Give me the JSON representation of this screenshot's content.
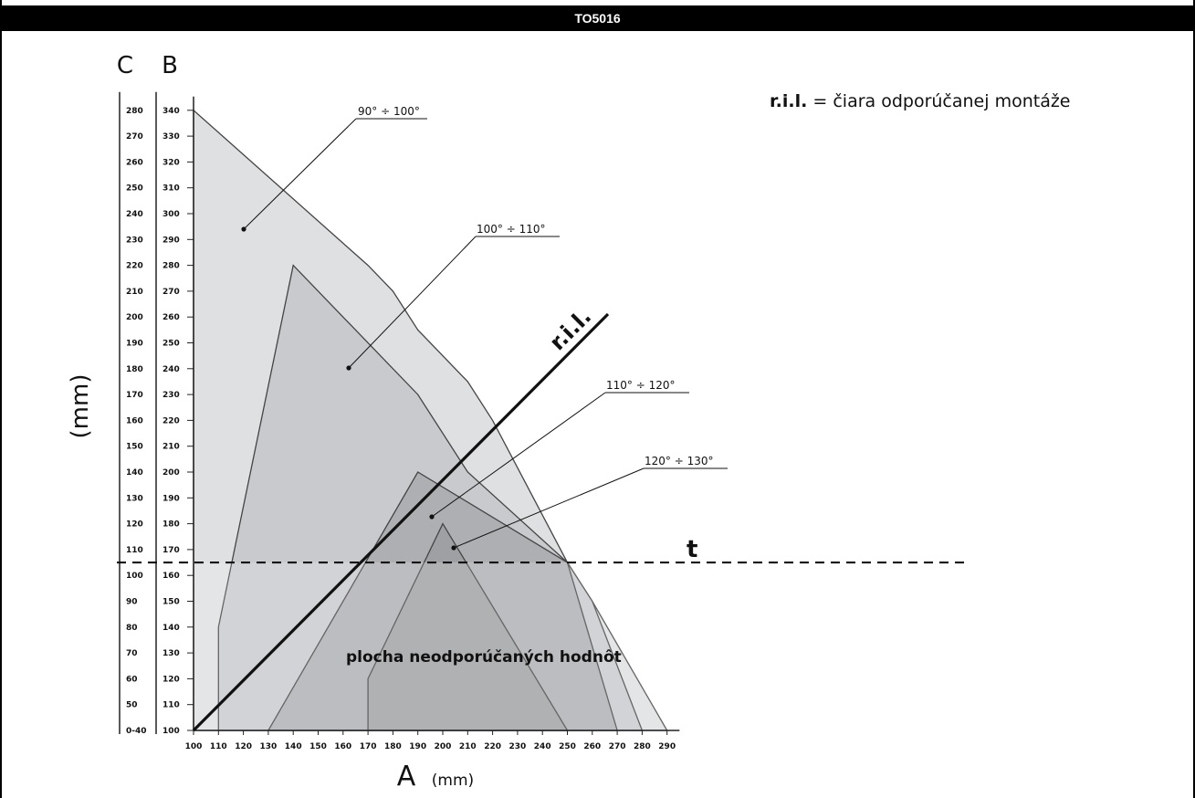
{
  "title": "TO5016",
  "legend": {
    "abbr": "r.i.l.",
    "text": " = čiara odporúčanej montáže"
  },
  "chart_data": {
    "type": "area",
    "x_axis": {
      "letter": "A",
      "unit": "(mm)",
      "ticks": [
        100,
        110,
        120,
        130,
        140,
        150,
        160,
        170,
        180,
        190,
        200,
        210,
        220,
        230,
        240,
        250,
        260,
        270,
        280,
        290
      ],
      "range": [
        100,
        290
      ]
    },
    "y_axis_b": {
      "letter": "B",
      "ticks": [
        100,
        110,
        120,
        130,
        140,
        150,
        160,
        170,
        180,
        190,
        200,
        210,
        220,
        230,
        240,
        250,
        260,
        270,
        280,
        290,
        300,
        310,
        320,
        330,
        340
      ],
      "range": [
        100,
        340
      ]
    },
    "y_axis_c": {
      "letter": "C",
      "ticks": [
        "0-40",
        "50",
        "60",
        "70",
        "80",
        "90",
        "100",
        "110",
        "120",
        "130",
        "140",
        "150",
        "160",
        "170",
        "180",
        "190",
        "200",
        "210",
        "220",
        "230",
        "240",
        "250",
        "260",
        "270",
        "280"
      ]
    },
    "y_unit": "(mm)",
    "series": [
      {
        "name": "90° ÷ 100°",
        "fill": "#dfe0e2",
        "points": [
          [
            100,
            100
          ],
          [
            100,
            340
          ],
          [
            170,
            280
          ],
          [
            180,
            270
          ],
          [
            190,
            255
          ],
          [
            210,
            235
          ],
          [
            220,
            220
          ],
          [
            250,
            165
          ],
          [
            260,
            150
          ],
          [
            290,
            100
          ]
        ]
      },
      {
        "name": "100° ÷ 110°",
        "fill": "#c9cacd",
        "points": [
          [
            110,
            100
          ],
          [
            110,
            140
          ],
          [
            140,
            280
          ],
          [
            190,
            230
          ],
          [
            210,
            200
          ],
          [
            250,
            165
          ],
          [
            260,
            150
          ],
          [
            280,
            100
          ]
        ]
      },
      {
        "name": "110° ÷ 120°",
        "fill": "#aeafb2",
        "points": [
          [
            130,
            100
          ],
          [
            190,
            200
          ],
          [
            250,
            165
          ],
          [
            270,
            100
          ]
        ]
      },
      {
        "name": "120° ÷ 130°",
        "fill": "#9fa0a3",
        "points": [
          [
            170,
            100
          ],
          [
            170,
            120
          ],
          [
            200,
            180
          ],
          [
            250,
            100
          ]
        ]
      }
    ],
    "callouts": [
      {
        "label": "90° ÷ 100°"
      },
      {
        "label": "100° ÷ 110°"
      },
      {
        "label": "110° ÷ 120°"
      },
      {
        "label": "120° ÷ 130°"
      }
    ],
    "ril_line": {
      "label": "r.i.l.",
      "points": [
        [
          100,
          100
        ],
        [
          220,
          220
        ]
      ]
    },
    "threshold_line": {
      "label": "t",
      "value_b": 165
    },
    "region_label": "plocha neodporúčaných hodnôt"
  }
}
